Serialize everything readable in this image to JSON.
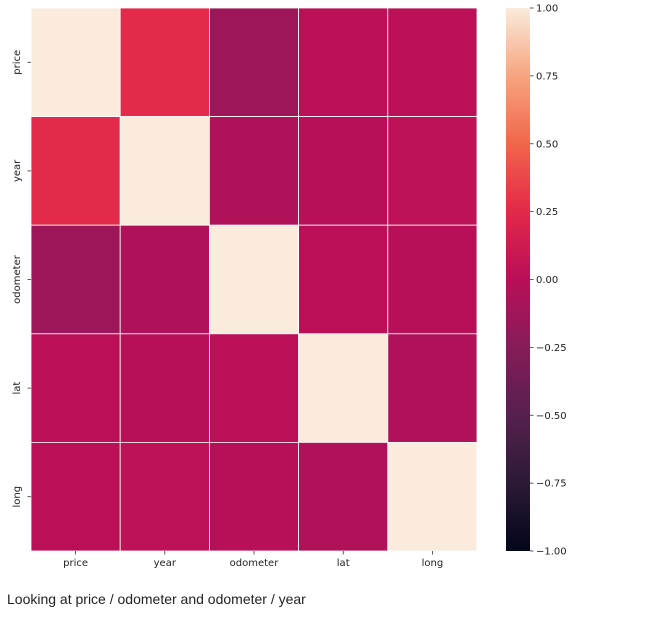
{
  "chart_data": {
    "type": "heatmap",
    "x_categories": [
      "price",
      "year",
      "odometer",
      "lat",
      "long"
    ],
    "y_categories": [
      "price",
      "year",
      "odometer",
      "lat",
      "long"
    ],
    "values": [
      [
        1.0,
        0.26,
        -0.14,
        0.01,
        0.01
      ],
      [
        0.26,
        1.0,
        -0.05,
        0.0,
        0.03
      ],
      [
        -0.14,
        -0.05,
        1.0,
        0.01,
        -0.01
      ],
      [
        0.01,
        0.0,
        0.01,
        1.0,
        -0.04
      ],
      [
        0.01,
        0.03,
        -0.01,
        -0.04,
        1.0
      ]
    ],
    "vmin": -1.0,
    "vmax": 1.0,
    "colorbar_ticks": [
      "1.00",
      "0.75",
      "0.50",
      "0.25",
      "0.00",
      "−0.25",
      "−0.50",
      "−0.75",
      "−1.00"
    ],
    "colorbar_tick_values": [
      1.0,
      0.75,
      0.5,
      0.25,
      0.0,
      -0.25,
      -0.5,
      -0.75,
      -1.0
    ],
    "colormap": "rocket",
    "gridlines": "white",
    "colorbar_position": "right"
  },
  "caption": "Looking at price / odometer and odometer / year"
}
